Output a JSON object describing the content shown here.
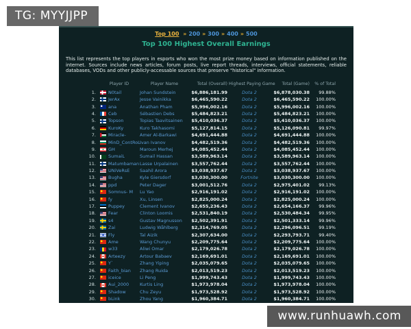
{
  "watermarks": {
    "top_left": "TG: MYYJJPP",
    "bottom_right": "www.runhuawh.com"
  },
  "nav": {
    "current": "Top 100",
    "separator": "»",
    "links": [
      "200",
      "300",
      "400",
      "500"
    ]
  },
  "title": "Top 100 Highest Overall Earnings",
  "description": "This list represents the top players in esports who won the most prize money based on information published on the internet. Sources include news articles, forum posts, live report threads, interviews, official statements, reliable databases, VODs and other publicly-accessable sources that preserve \"historical\" information.",
  "colors": {
    "panel_bg": "#0e2123",
    "title": "#2fb391",
    "nav_current": "#f0b63e",
    "link": "#5b9bd5",
    "header_text": "#8ea6ad"
  },
  "table": {
    "headers": [
      "Player ID",
      "Player Name",
      "Total (Overall)",
      "Highest Paying Game",
      "Total (Game)",
      "% of Total"
    ],
    "rows": [
      {
        "rank": "1.",
        "flag": "dk",
        "id": "N0tail",
        "name": "Johan Sundstein",
        "total_overall": "$6,886,181.99",
        "game": "Dota 2",
        "total_game": "$6,878,030.38",
        "pct": "99.88%"
      },
      {
        "rank": "2.",
        "flag": "fi",
        "id": "JerAx",
        "name": "Jesse Vainikka",
        "total_overall": "$6,465,590.22",
        "game": "Dota 2",
        "total_game": "$6,465,590.22",
        "pct": "100.00%"
      },
      {
        "rank": "3.",
        "flag": "au",
        "id": "ana",
        "name": "Anathan Pham",
        "total_overall": "$5,996,002.16",
        "game": "Dota 2",
        "total_game": "$5,996,002.16",
        "pct": "100.00%"
      },
      {
        "rank": "4.",
        "flag": "fr",
        "id": "Ceb",
        "name": "Sébastien Debs",
        "total_overall": "$5,484,823.21",
        "game": "Dota 2",
        "total_game": "$5,484,823.21",
        "pct": "100.00%"
      },
      {
        "rank": "5.",
        "flag": "fi",
        "id": "Topson",
        "name": "Topias Taavitsainen",
        "total_overall": "$5,410,036.37",
        "game": "Dota 2",
        "total_game": "$5,410,036.37",
        "pct": "100.00%"
      },
      {
        "rank": "6.",
        "flag": "de",
        "id": "KuroKy",
        "name": "Kuro Takhasomi",
        "total_overall": "$5,127,814.15",
        "game": "Dota 2",
        "total_game": "$5,126,090.81",
        "pct": "99.97%"
      },
      {
        "rank": "7.",
        "flag": "jo",
        "id": "Miracle-",
        "name": "Amer Al-Barkawi",
        "total_overall": "$4,691,444.88",
        "game": "Dota 2",
        "total_game": "$4,691,444.88",
        "pct": "100.00%"
      },
      {
        "rank": "8.",
        "flag": "bg",
        "id": "MinD_ContRoL",
        "name": "Ivan Ivanov",
        "total_overall": "$4,482,519.36",
        "game": "Dota 2",
        "total_game": "$4,482,519.36",
        "pct": "100.00%"
      },
      {
        "rank": "9.",
        "flag": "lb",
        "id": "GH",
        "name": "Maroun Merhej",
        "total_overall": "$4,085,452.44",
        "game": "Dota 2",
        "total_game": "$4,085,452.44",
        "pct": "100.00%"
      },
      {
        "rank": "10.",
        "flag": "pk",
        "id": "SumaiL",
        "name": "Sumail Hassan",
        "total_overall": "$3,589,963.14",
        "game": "Dota 2",
        "total_game": "$3,589,963.14",
        "pct": "100.00%"
      },
      {
        "rank": "11.",
        "flag": "fi",
        "id": "Matumbaman",
        "name": "Lasse Urpalainen",
        "total_overall": "$3,557,762.44",
        "game": "Dota 2",
        "total_game": "$3,557,762.44",
        "pct": "100.00%"
      },
      {
        "rank": "12.",
        "flag": "us",
        "id": "UNiVeRsE",
        "name": "Saahil Arora",
        "total_overall": "$3,038,937.67",
        "game": "Dota 2",
        "total_game": "$3,038,937.67",
        "pct": "100.00%"
      },
      {
        "rank": "13.",
        "flag": "us",
        "id": "Bugha",
        "name": "Kyle Giersdorf",
        "total_overall": "$3,030,300.00",
        "game": "Fortnite",
        "total_game": "$3,030,300.00",
        "pct": "100.00%"
      },
      {
        "rank": "14.",
        "flag": "us",
        "id": "ppd",
        "name": "Peter Dager",
        "total_overall": "$3,001,512.76",
        "game": "Dota 2",
        "total_game": "$2,975,401.02",
        "pct": "99.13%"
      },
      {
        "rank": "15.",
        "flag": "cn",
        "id": "Somnus- M",
        "name": "Lu Yao",
        "total_overall": "$2,916,191.02",
        "game": "Dota 2",
        "total_game": "$2,916,191.02",
        "pct": "100.00%"
      },
      {
        "rank": "16.",
        "flag": "cn",
        "id": "fy",
        "name": "Xu, Linsen",
        "total_overall": "$2,825,000.24",
        "game": "Dota 2",
        "total_game": "$2,825,000.24",
        "pct": "100.00%"
      },
      {
        "rank": "17.",
        "flag": "ee",
        "id": "Puppey",
        "name": "Clement Ivanov",
        "total_overall": "$2,655,236.43",
        "game": "Dota 2",
        "total_game": "$2,654,166.37",
        "pct": "99.96%"
      },
      {
        "rank": "18.",
        "flag": "us",
        "id": "Fear",
        "name": "Clinton Loomis",
        "total_overall": "$2,531,840.19",
        "game": "Dota 2",
        "total_game": "$2,530,484.34",
        "pct": "99.95%"
      },
      {
        "rank": "19.",
        "flag": "se",
        "id": "s4",
        "name": "Gustav Magnusson",
        "total_overall": "$2,502,391.91",
        "game": "Dota 2",
        "total_game": "$2,501,333.14",
        "pct": "99.96%"
      },
      {
        "rank": "20.",
        "flag": "se",
        "id": "Zai",
        "name": "Ludwig Wåhlberg",
        "total_overall": "$2,314,769.05",
        "game": "Dota 2",
        "total_game": "$2,296,096.51",
        "pct": "99.19%"
      },
      {
        "rank": "21.",
        "flag": "il",
        "id": "Fly",
        "name": "Tal Aizik",
        "total_overall": "$2,307,634.00",
        "game": "Dota 2",
        "total_game": "$2,293,793.71",
        "pct": "99.40%"
      },
      {
        "rank": "22.",
        "flag": "cn",
        "id": "Ame",
        "name": "Wang Chunyu",
        "total_overall": "$2,209,775.64",
        "game": "Dota 2",
        "total_game": "$2,209,775.64",
        "pct": "100.00%"
      },
      {
        "rank": "23.",
        "flag": "ro",
        "id": "w33",
        "name": "Aliwi Omar",
        "total_overall": "$2,179,026.78",
        "game": "Dota 2",
        "total_game": "$2,179,026.78",
        "pct": "100.00%"
      },
      {
        "rank": "24.",
        "flag": "ca",
        "id": "Arteezy",
        "name": "Artour Babaev",
        "total_overall": "$2,169,691.01",
        "game": "Dota 2",
        "total_game": "$2,169,691.01",
        "pct": "100.00%"
      },
      {
        "rank": "25.",
        "flag": "cn",
        "id": "Y`",
        "name": "Zhang Yiping",
        "total_overall": "$2,035,079.65",
        "game": "Dota 2",
        "total_game": "$2,035,079.65",
        "pct": "100.00%"
      },
      {
        "rank": "26.",
        "flag": "cn",
        "id": "Faith_bian",
        "name": "Zhang Ruida",
        "total_overall": "$2,013,519.23",
        "game": "Dota 2",
        "total_game": "$2,013,519.23",
        "pct": "100.00%"
      },
      {
        "rank": "27.",
        "flag": "cn",
        "id": "iceice",
        "name": "Li Peng",
        "total_overall": "$1,999,743.43",
        "game": "Dota 2",
        "total_game": "$1,999,743.43",
        "pct": "100.00%"
      },
      {
        "rank": "28.",
        "flag": "ca",
        "id": "Aui_2000",
        "name": "Kurtis Ling",
        "total_overall": "$1,973,978.04",
        "game": "Dota 2",
        "total_game": "$1,973,978.04",
        "pct": "100.00%"
      },
      {
        "rank": "29.",
        "flag": "cn",
        "id": "Shadow",
        "name": "Chu Zeyu",
        "total_overall": "$1,973,528.92",
        "game": "Dota 2",
        "total_game": "$1,973,528.92",
        "pct": "100.00%"
      },
      {
        "rank": "30.",
        "flag": "cn",
        "id": "bLink",
        "name": "Zhou Yang",
        "total_overall": "$1,960,384.71",
        "game": "Dota 2",
        "total_game": "$1,960,384.71",
        "pct": "100.00%"
      }
    ]
  }
}
